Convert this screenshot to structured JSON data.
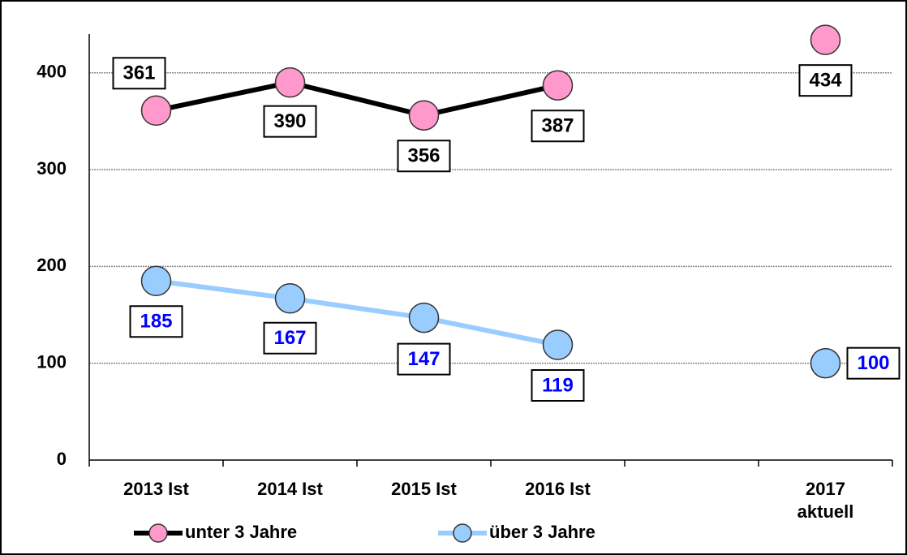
{
  "chart_data": {
    "type": "line",
    "categories": [
      "2013 Ist",
      "2014 Ist",
      "2015 Ist",
      "2016 Ist",
      null,
      "2017\naktuell"
    ],
    "series": [
      {
        "name": "unter 3 Jahre",
        "color": "#000000",
        "marker_color": "#ff99cc",
        "label_color": "#000000",
        "values": [
          361,
          390,
          356,
          387,
          null,
          434
        ]
      },
      {
        "name": "über 3 Jahre",
        "color": "#99ccff",
        "marker_color": "#99ccff",
        "label_color": "#0000ff",
        "values": [
          185,
          167,
          147,
          119,
          null,
          100
        ]
      }
    ],
    "ylim": [
      0,
      440
    ],
    "yticks": [
      0,
      100,
      200,
      300,
      400
    ],
    "grid": true,
    "legend": "bottom"
  }
}
